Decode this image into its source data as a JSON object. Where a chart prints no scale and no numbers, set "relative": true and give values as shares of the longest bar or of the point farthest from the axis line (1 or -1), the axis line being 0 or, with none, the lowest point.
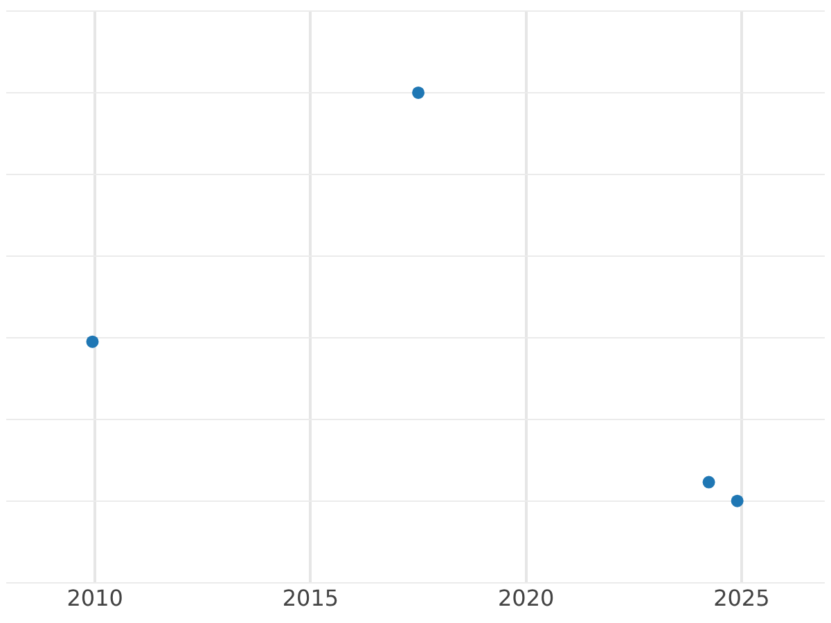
{
  "chart_data": {
    "type": "scatter",
    "relative": true,
    "x": [
      2009.94,
      2017.5,
      2024.24,
      2024.9
    ],
    "series": [
      {
        "color": "#1f77b4",
        "values": [
          0.39,
          1,
          0.046,
          0
        ]
      }
    ],
    "xlim": [
      2007.94,
      2026.93
    ],
    "xticks": [
      2010,
      2015,
      2020,
      2025
    ],
    "grid": true,
    "marker": "circle",
    "legend": false
  }
}
